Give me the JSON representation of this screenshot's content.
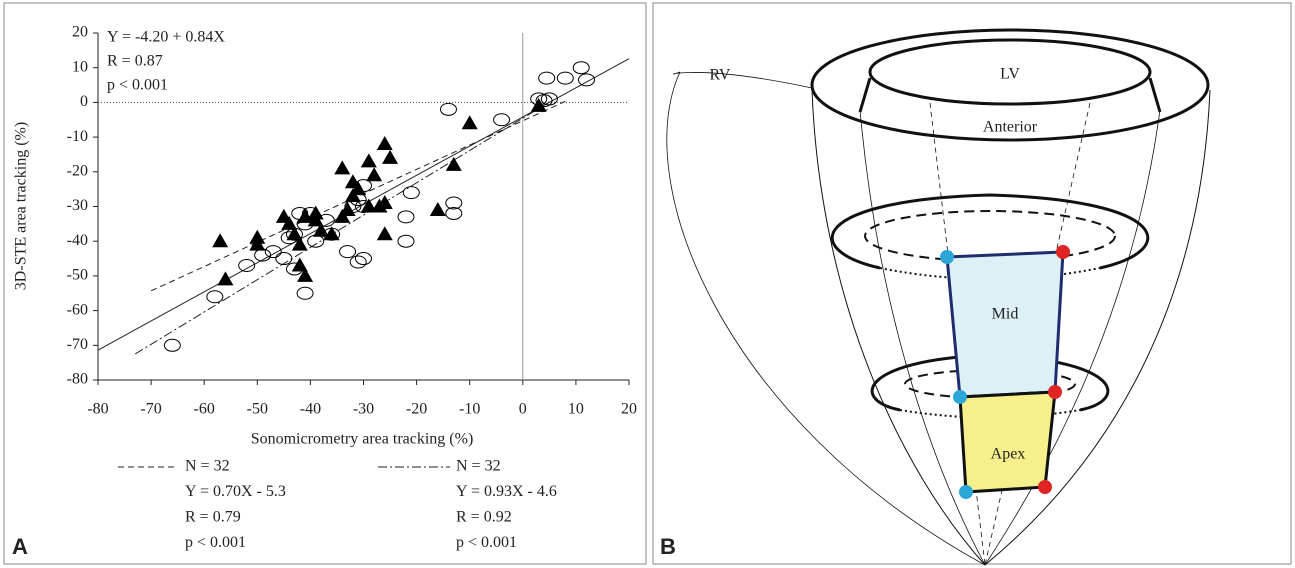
{
  "chart_data": {
    "type": "scatter",
    "x_label": "Sonomicrometry area tracking (%)",
    "y_label": "3D-STE area tracking (%)",
    "xlim": [
      -80,
      20
    ],
    "ylim": [
      -80,
      20
    ],
    "xticks": [
      -80,
      -70,
      -60,
      -50,
      -40,
      -30,
      -20,
      -10,
      0,
      10,
      20
    ],
    "yticks": [
      -80,
      -70,
      -60,
      -50,
      -40,
      -30,
      -20,
      -10,
      0,
      10,
      20
    ],
    "hline": 0,
    "vline": 0,
    "annotation": [
      "Y = -4.20 + 0.84X",
      "R = 0.87",
      "p < 0.001"
    ],
    "series": [
      {
        "marker": "circle",
        "color": "#000000",
        "x": [
          4.5,
          8,
          11,
          12,
          3,
          5,
          4,
          -14,
          -4,
          -21,
          -22,
          -22,
          -13,
          -13,
          -30,
          -30,
          -31,
          -32,
          -37,
          -36,
          -39,
          -40,
          -41,
          -42,
          -43,
          -44,
          -45,
          -47,
          -49,
          -52,
          -58,
          -66,
          -33,
          -30,
          -31,
          -41,
          -43
        ],
        "y": [
          7,
          7,
          10,
          6.5,
          1,
          1,
          0.5,
          -2,
          -5,
          -26,
          -33,
          -40,
          -29,
          -32,
          -24,
          -30,
          -28,
          -30,
          -34,
          -38,
          -40,
          -32,
          -35,
          -32,
          -38,
          -39,
          -45,
          -43,
          -44,
          -47,
          -56,
          -70,
          -43,
          -45,
          -46,
          -55,
          -48
        ]
      },
      {
        "marker": "triangle",
        "color": "#000000",
        "x": [
          -57,
          -56,
          -50,
          -50,
          -45,
          -44,
          -43,
          -42,
          -42,
          -41,
          -41,
          -39,
          -39,
          -38,
          -36,
          -34,
          -34,
          -33,
          -32,
          -32,
          -31,
          -29,
          -29,
          -28,
          -27,
          -26,
          -26,
          -25,
          -26,
          -16,
          -13,
          -10,
          3
        ],
        "y": [
          -40,
          -51,
          -39,
          -41,
          -33,
          -35,
          -38,
          -41,
          -47,
          -50,
          -33,
          -34,
          -32,
          -37,
          -38,
          -19,
          -33,
          -31,
          -23,
          -27,
          -25,
          -17,
          -30,
          -21,
          -30,
          -12,
          -29,
          -16,
          -38,
          -31,
          -18,
          -6,
          -1
        ]
      }
    ],
    "fit_lines": [
      {
        "dash": "solid",
        "x": [
          -80,
          20
        ],
        "y": [
          -71.4,
          12.6
        ]
      },
      {
        "dash": "dashed",
        "x": [
          -70,
          8
        ],
        "y": [
          -54.3,
          0.3
        ],
        "legend": [
          "N = 32",
          "Y = 0.70X - 5.3",
          "R = 0.79",
          "p < 0.001"
        ]
      },
      {
        "dash": "dashdot",
        "x": [
          -73,
          5
        ],
        "y": [
          -72.5,
          0.1
        ],
        "legend": [
          "N = 32",
          "Y = 0.93X - 4.6",
          "R = 0.92",
          "p < 0.001"
        ]
      }
    ]
  },
  "panel_labels": [
    "A",
    "B"
  ],
  "diagram": {
    "rv": "RV",
    "lv": "LV",
    "anterior": "Anterior",
    "mid": "Mid",
    "apex": "Apex"
  }
}
